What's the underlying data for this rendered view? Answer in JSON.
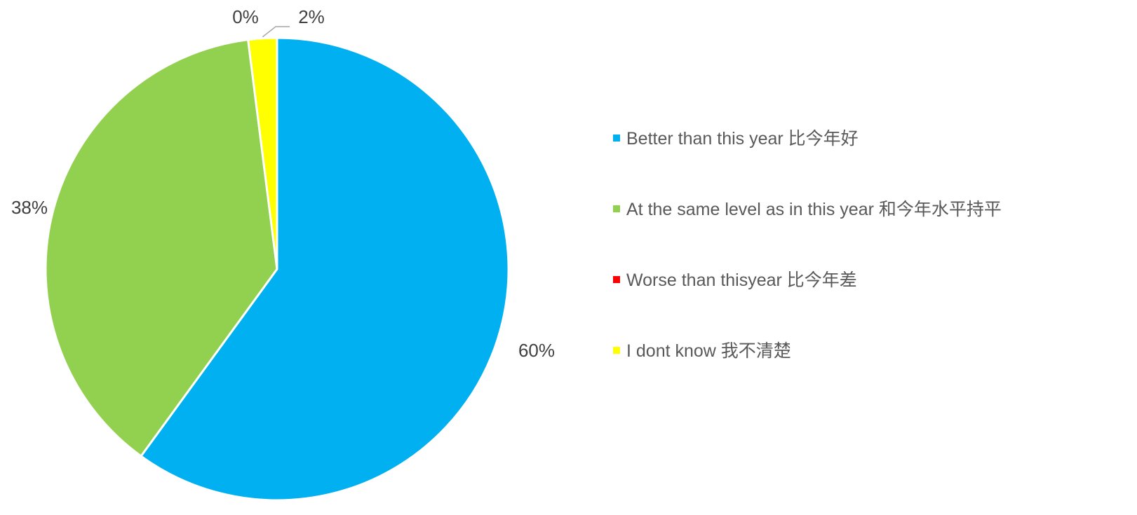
{
  "chart_data": {
    "type": "pie",
    "categories": [
      "Better than this year 比今年好",
      "At the same level as in this year 和今年水平持平",
      "Worse than thisyear 比今年差",
      "I dont know 我不清楚"
    ],
    "values": [
      60,
      38,
      0,
      2
    ],
    "data_labels": [
      "60%",
      "38%",
      "0%",
      "2%"
    ],
    "colors": [
      "#00b0f0",
      "#92d050",
      "#ff0000",
      "#ffff00"
    ],
    "legend_position": "right",
    "start_angle": "12 o'clock, clockwise"
  }
}
